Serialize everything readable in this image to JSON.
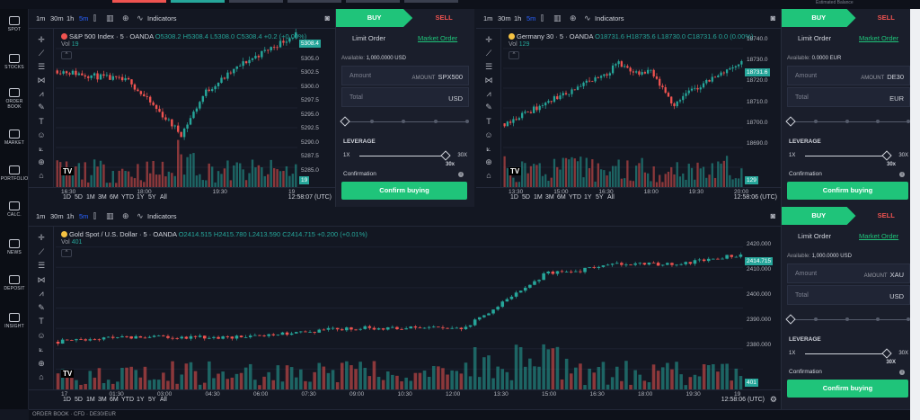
{
  "topbar": {
    "estimated_balance_label": "Estimated Balance"
  },
  "nav": [
    {
      "label": "SPOT",
      "icon": "chart-bar-icon"
    },
    {
      "label": "STOCKS",
      "icon": "stocks-icon"
    },
    {
      "label": "ORDER BOOK",
      "icon": "order-book-icon"
    },
    {
      "label": "MARKET",
      "icon": "market-icon"
    },
    {
      "label": "PORTFOLIO",
      "icon": "portfolio-icon"
    },
    {
      "label": "CALC.",
      "icon": "calculator-icon"
    },
    {
      "label": "NEWS",
      "icon": "news-icon"
    },
    {
      "label": "DEPOSIT",
      "icon": "deposit-icon"
    },
    {
      "label": "INSIGHT",
      "icon": "insight-icon"
    }
  ],
  "timeframes": [
    "1m",
    "30m",
    "1h",
    "5m"
  ],
  "indicators_label": "Indicators",
  "ranges": [
    "1D",
    "5D",
    "1M",
    "3M",
    "6M",
    "YTD",
    "1Y",
    "5Y",
    "All"
  ],
  "charts": {
    "spx": {
      "symbol": "S&P 500 Index · 5 · OANDA",
      "ohlc": "O5308.2 H5308.4 L5308.0 C5308.4 +0.2 (+0.00%)",
      "vol_label": "Vol",
      "vol_value": "19",
      "price_tag": "5308.4",
      "vol_tag": "19",
      "y_ticks": [
        "5310.0",
        "5305.0",
        "5302.5",
        "5300.0",
        "5297.5",
        "5295.0",
        "5292.5",
        "5290.0",
        "5287.5",
        "5285.0"
      ],
      "x_ticks": [
        "16:30",
        "18:00",
        "19:30",
        "19"
      ],
      "clock": "12:58:07 (UTC)"
    },
    "de30": {
      "symbol": "Germany 30 · 5 · OANDA",
      "ohlc": "O18731.6 H18735.6 L18730.0 C18731.6 0.0 (0.00%)",
      "vol_label": "Vol",
      "vol_value": "129",
      "price_tag": "18731.6",
      "vol_tag": "129",
      "y_ticks": [
        "18740.0",
        "18730.0",
        "18720.0",
        "18710.0",
        "18700.0",
        "18690.0"
      ],
      "x_ticks": [
        "13:30",
        "15:00",
        "16:30",
        "18:00",
        "19:30",
        "20:00"
      ],
      "clock": "12:58:06 (UTC)"
    },
    "xau": {
      "symbol": "Gold Spot / U.S. Dollar · 5 · OANDA",
      "ohlc": "O2414.515 H2415.780 L2413.590 C2414.715 +0.200 (+0.01%)",
      "vol_label": "Vol",
      "vol_value": "401",
      "price_tag": "2414.715",
      "vol_tag": "401",
      "y_ticks": [
        "2420.000",
        "2410.000",
        "2400.000",
        "2390.000",
        "2380.000"
      ],
      "x_ticks": [
        "17",
        "01:30",
        "03:00",
        "04:30",
        "06:00",
        "07:30",
        "09:00",
        "10:30",
        "12:00",
        "13:30",
        "15:00",
        "16:30",
        "18:00",
        "19:30",
        "19"
      ],
      "clock": "12:58:06 (UTC)"
    }
  },
  "orders": {
    "spx": {
      "buy": "BUY",
      "sell": "SELL",
      "limit": "Limit Order",
      "market": "Market Order",
      "available_label": "Available:",
      "available_value": "1,000.0000 USD",
      "amount_label": "Amount",
      "amount_unit_label": "AMOUNT",
      "amount_symbol": "SPX500",
      "total_label": "Total",
      "total_unit": "USD",
      "leverage_label": "LEVERAGE",
      "lev_min": "1X",
      "lev_max": "30X",
      "lev_value": "30x",
      "confirmation_label": "Confirmation",
      "confirm_button": "Confirm buying"
    },
    "de30": {
      "buy": "BUY",
      "sell": "SELL",
      "limit": "Limit Order",
      "market": "Market Order",
      "available_label": "Available:",
      "available_value": "0.0000 EUR",
      "amount_label": "Amount",
      "amount_unit_label": "AMOUNT",
      "amount_symbol": "DE30",
      "total_label": "Total",
      "total_unit": "EUR",
      "leverage_label": "LEVERAGE",
      "lev_min": "1X",
      "lev_max": "30X",
      "lev_value": "30x",
      "confirmation_label": "Confirmation",
      "confirm_button": "Confirm buying"
    },
    "xau": {
      "buy": "BUY",
      "sell": "SELL",
      "limit": "Limit Order",
      "market": "Market Order",
      "available_label": "Available:",
      "available_value": "1,000.0000 USD",
      "amount_label": "Amount",
      "amount_unit_label": "AMOUNT",
      "amount_symbol": "XAU",
      "total_label": "Total",
      "total_unit": "USD",
      "leverage_label": "LEVERAGE",
      "lev_min": "1X",
      "lev_max": "30X",
      "lev_value": "30X",
      "confirmation_label": "Confirmation",
      "confirm_button": "Confirm buying"
    }
  },
  "statusbar": {
    "text": "ORDER BOOK · CFD · DE30/EUR"
  },
  "colors": {
    "up": "#26a69a",
    "down": "#ef5350",
    "buy": "#1fc47a",
    "accent": "#2962ff"
  }
}
